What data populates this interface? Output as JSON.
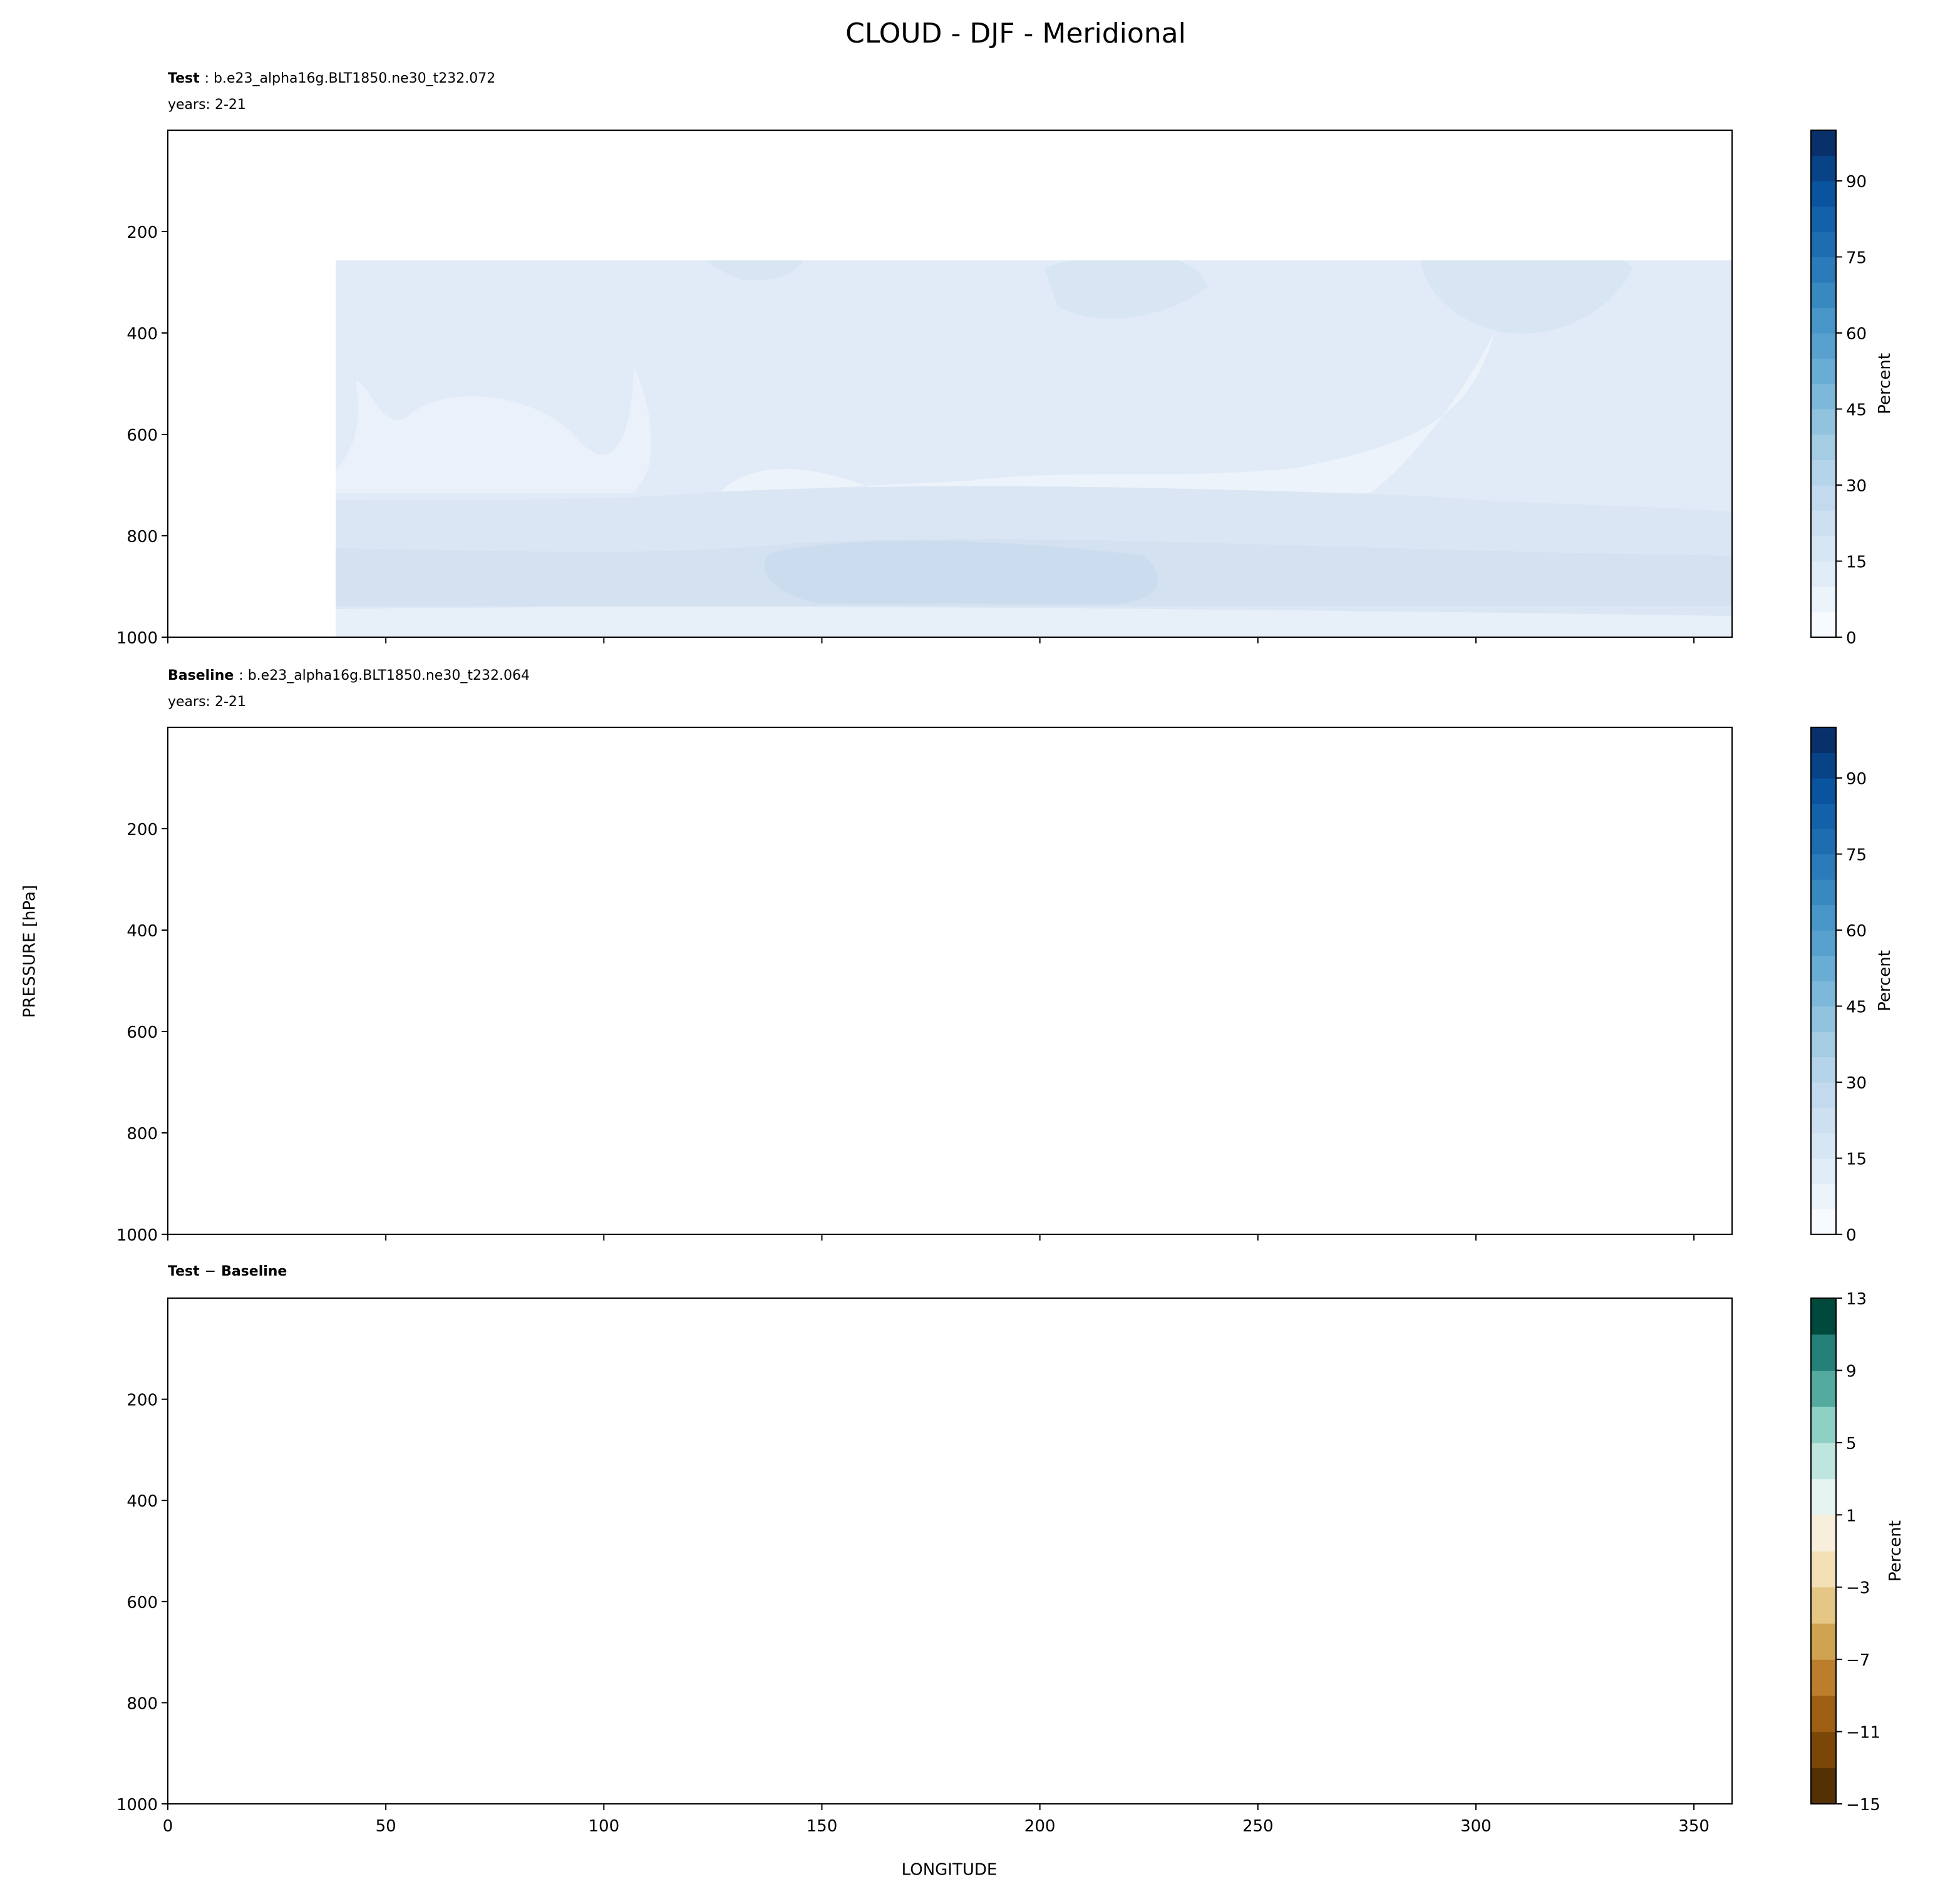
{
  "title": "CLOUD - DJF - Meridional",
  "ylabel": "PRESSURE [hPa]",
  "xlabel": "LONGITUDE",
  "chart_data": [
    {
      "type": "contour",
      "title_segments": [
        {
          "text": "Test",
          "bold": true
        },
        {
          "text": ": b.e23_alpha16g.BLT1850.ne30_t232.072",
          "bold": false
        }
      ],
      "subtitle": "years: 2-21",
      "xlim": [
        0,
        358.75
      ],
      "xticks": [
        0,
        50,
        100,
        150,
        200,
        250,
        300,
        350
      ],
      "show_xticklabels": false,
      "ylim": [
        1000,
        0
      ],
      "yticks": [
        200,
        400,
        600,
        800,
        1000
      ],
      "colorbar": {
        "label": "Percent",
        "lim": [
          0,
          100
        ],
        "ticks": [
          0,
          15,
          30,
          45,
          60,
          75,
          90
        ],
        "colors": [
          "#f7fbff",
          "#ebf3fb",
          "#e0ecf8",
          "#d6e6f4",
          "#cde0f1",
          "#c3daee",
          "#b6d4e9",
          "#a4cce3",
          "#91c3de",
          "#7db8da",
          "#69add5",
          "#58a1cf",
          "#4896c8",
          "#3989c1",
          "#2b7bba",
          "#1f6db1",
          "#1361a9",
          "#0a539e",
          "#084287",
          "#08306b"
        ]
      }
    },
    {
      "type": "contour",
      "title_segments": [
        {
          "text": "Baseline",
          "bold": true
        },
        {
          "text": ": b.e23_alpha16g.BLT1850.ne30_t232.064",
          "bold": false
        }
      ],
      "subtitle": "years: 2-21",
      "xlim": [
        0,
        358.75
      ],
      "xticks": [
        0,
        50,
        100,
        150,
        200,
        250,
        300,
        350
      ],
      "show_xticklabels": false,
      "ylim": [
        1000,
        0
      ],
      "yticks": [
        200,
        400,
        600,
        800,
        1000
      ],
      "colorbar": {
        "label": "Percent",
        "lim": [
          0,
          100
        ],
        "ticks": [
          0,
          15,
          30,
          45,
          60,
          75,
          90
        ],
        "colors": [
          "#f7fbff",
          "#ebf3fb",
          "#e0ecf8",
          "#d6e6f4",
          "#cde0f1",
          "#c3daee",
          "#b6d4e9",
          "#a4cce3",
          "#91c3de",
          "#7db8da",
          "#69add5",
          "#58a1cf",
          "#4896c8",
          "#3989c1",
          "#2b7bba",
          "#1f6db1",
          "#1361a9",
          "#0a539e",
          "#084287",
          "#08306b"
        ]
      }
    },
    {
      "type": "contour",
      "title_segments": [
        {
          "text": "Test",
          "bold": true
        },
        {
          "text": "−",
          "bold": false
        },
        {
          "text": "Baseline",
          "bold": true
        }
      ],
      "xlim": [
        0,
        358.75
      ],
      "xticks": [
        0,
        50,
        100,
        150,
        200,
        250,
        300,
        350
      ],
      "show_xticklabels": true,
      "ylim": [
        1000,
        0
      ],
      "yticks": [
        200,
        400,
        600,
        800,
        1000
      ],
      "colorbar": {
        "label": "Percent",
        "lim": [
          -15,
          13
        ],
        "ticks": [
          {
            "value": -15,
            "label": "−15"
          },
          {
            "value": -11,
            "label": "−11"
          },
          {
            "value": -7,
            "label": "−7"
          },
          {
            "value": -3,
            "label": "−3"
          },
          1,
          5,
          9,
          13
        ],
        "colors": [
          "#543005",
          "#7a4709",
          "#9c5f13",
          "#ba7e2c",
          "#d0a352",
          "#e4c685",
          "#f3e0b7",
          "#f7efdc",
          "#e6f4f1",
          "#bfe5df",
          "#8fd0c4",
          "#55aa9f",
          "#25807a",
          "#01493d"
        ]
      }
    }
  ]
}
